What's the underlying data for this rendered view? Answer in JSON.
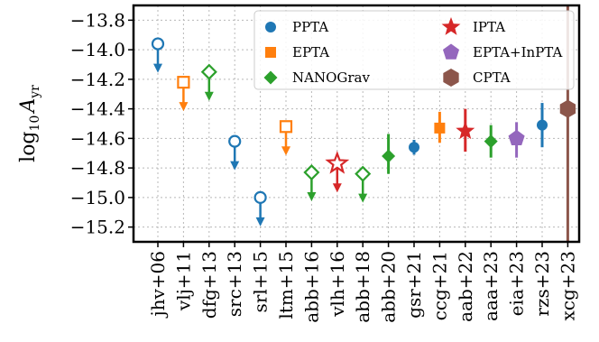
{
  "chart_data": {
    "type": "scatter",
    "ylabel": "log₁₀ A_yr",
    "ylabel_main": "log",
    "ylabel_sub": "10",
    "ylabel_var": "A",
    "ylabel_varsub": "yr",
    "ylim": [
      -15.3,
      -13.7
    ],
    "yticks": [
      -15.2,
      -15.0,
      -14.8,
      -14.6,
      -14.4,
      -14.2,
      -14.0,
      -13.8
    ],
    "ytick_labels": [
      "−15.2",
      "−15.0",
      "−14.8",
      "−14.6",
      "−14.4",
      "−14.2",
      "−14.0",
      "−13.8"
    ],
    "grid": true,
    "legend_position": "top-right",
    "categories": [
      "jhv+06",
      "vlj+11",
      "dfg+13",
      "src+13",
      "srl+15",
      "ltm+15",
      "abb+16",
      "vlh+16",
      "abb+18",
      "abb+20",
      "gsr+21",
      "ccg+21",
      "aab+22",
      "aaa+23",
      "eia+23",
      "rzs+23",
      "xcg+23"
    ],
    "series": [
      {
        "name": "PPTA",
        "color": "#1f77b4",
        "marker": "circle"
      },
      {
        "name": "EPTA",
        "color": "#ff7f0e",
        "marker": "square"
      },
      {
        "name": "NANOGrav",
        "color": "#2ca02c",
        "marker": "diamond"
      },
      {
        "name": "IPTA",
        "color": "#d62728",
        "marker": "star"
      },
      {
        "name": "EPTA+InPTA",
        "color": "#9467bd",
        "marker": "pentagon"
      },
      {
        "name": "CPTA",
        "color": "#8c564b",
        "marker": "hexagon"
      }
    ],
    "points": [
      {
        "label": "jhv+06",
        "series": "PPTA",
        "y": -13.96,
        "kind": "upper_limit"
      },
      {
        "label": "vlj+11",
        "series": "EPTA",
        "y": -14.22,
        "kind": "upper_limit"
      },
      {
        "label": "dfg+13",
        "series": "NANOGrav",
        "y": -14.15,
        "kind": "upper_limit"
      },
      {
        "label": "src+13",
        "series": "PPTA",
        "y": -14.62,
        "kind": "upper_limit"
      },
      {
        "label": "srl+15",
        "series": "PPTA",
        "y": -15.0,
        "kind": "upper_limit"
      },
      {
        "label": "ltm+15",
        "series": "EPTA",
        "y": -14.52,
        "kind": "upper_limit"
      },
      {
        "label": "abb+16",
        "series": "NANOGrav",
        "y": -14.83,
        "kind": "upper_limit"
      },
      {
        "label": "vlh+16",
        "series": "IPTA",
        "y": -14.77,
        "kind": "upper_limit"
      },
      {
        "label": "abb+18",
        "series": "NANOGrav",
        "y": -14.84,
        "kind": "upper_limit"
      },
      {
        "label": "abb+20",
        "series": "NANOGrav",
        "y": -14.72,
        "err_low": 0.12,
        "err_high": 0.15,
        "kind": "detection"
      },
      {
        "label": "gsr+21",
        "series": "PPTA",
        "y": -14.66,
        "err_low": 0.05,
        "err_high": 0.05,
        "kind": "detection"
      },
      {
        "label": "ccg+21",
        "series": "EPTA",
        "y": -14.53,
        "err_low": 0.1,
        "err_high": 0.11,
        "kind": "detection"
      },
      {
        "label": "aab+22",
        "series": "IPTA",
        "y": -14.55,
        "err_low": 0.14,
        "err_high": 0.15,
        "kind": "detection"
      },
      {
        "label": "aaa+23",
        "series": "NANOGrav",
        "y": -14.62,
        "err_low": 0.11,
        "err_high": 0.11,
        "kind": "detection"
      },
      {
        "label": "eia+23",
        "series": "EPTA+InPTA",
        "y": -14.6,
        "err_low": 0.13,
        "err_high": 0.11,
        "kind": "detection"
      },
      {
        "label": "rzs+23",
        "series": "PPTA",
        "y": -14.51,
        "err_low": 0.15,
        "err_high": 0.15,
        "kind": "detection"
      },
      {
        "label": "xcg+23",
        "series": "CPTA",
        "y": -14.4,
        "err_low": 0.9,
        "err_high": 0.7,
        "kind": "detection"
      }
    ]
  }
}
